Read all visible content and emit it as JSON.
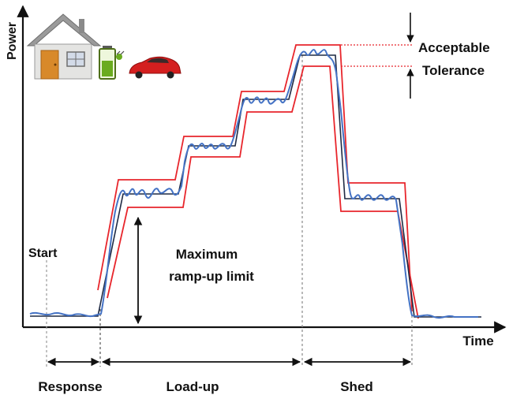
{
  "axes": {
    "y_label": "Power",
    "x_label": "Time"
  },
  "annotations": {
    "start": "Start",
    "ramp_line1": "Maximum",
    "ramp_line2": "ramp-up limit",
    "acceptable": "Acceptable",
    "tolerance": "Tolerance"
  },
  "phases": {
    "response": "Response",
    "load_up": "Load-up",
    "shed": "Shed"
  },
  "icons": [
    "house-icon",
    "battery-charging-icon",
    "electric-car-icon"
  ],
  "colors": {
    "signal": "#4472c4",
    "reference": "#1f2a44",
    "tolerance_band": "#e8262c",
    "axis": "#111111",
    "guide": "#9a9a9a"
  }
}
